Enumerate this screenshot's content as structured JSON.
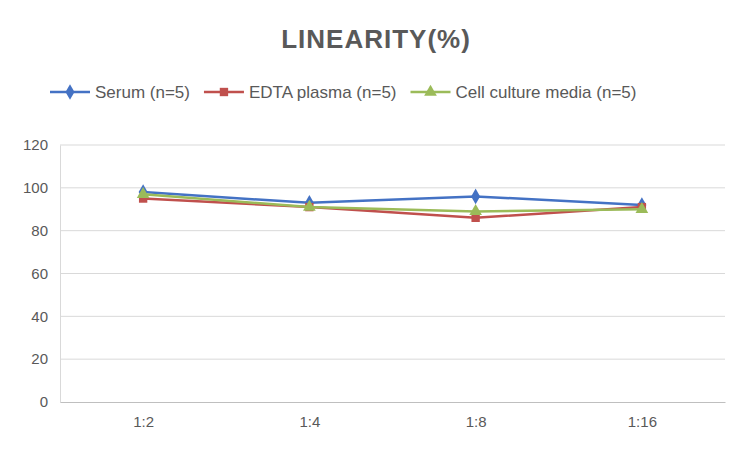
{
  "chart_data": {
    "type": "line",
    "title": "LINEARITY(%)",
    "categories": [
      "1:2",
      "1:4",
      "1:8",
      "1:16"
    ],
    "series": [
      {
        "name": "Serum (n=5)",
        "color": "#4472c4",
        "marker": "diamond",
        "values": [
          98,
          93,
          96,
          92
        ]
      },
      {
        "name": "EDTA plasma (n=5)",
        "color": "#c0504d",
        "marker": "square",
        "values": [
          95,
          91,
          86,
          91
        ]
      },
      {
        "name": "Cell culture media (n=5)",
        "color": "#9bbb59",
        "marker": "triangle",
        "values": [
          97,
          91,
          89,
          90
        ]
      }
    ],
    "ylim": [
      0,
      120
    ],
    "yticks": [
      0,
      20,
      40,
      60,
      80,
      100,
      120
    ],
    "grid": true,
    "legend": "top"
  }
}
